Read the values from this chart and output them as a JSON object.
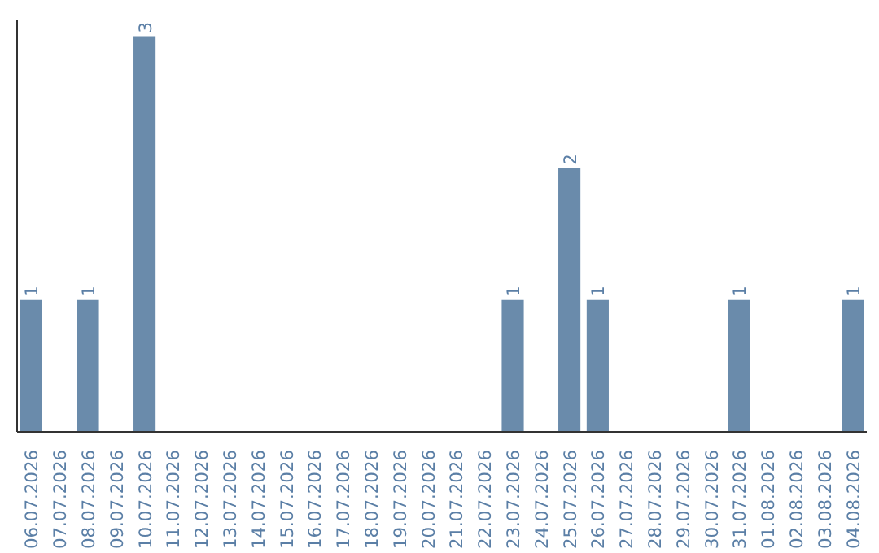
{
  "chart_data": {
    "type": "bar",
    "categories": [
      "06.07.2026",
      "07.07.2026",
      "08.07.2026",
      "09.07.2026",
      "10.07.2026",
      "11.07.2026",
      "12.07.2026",
      "13.07.2026",
      "14.07.2026",
      "15.07.2026",
      "16.07.2026",
      "17.07.2026",
      "18.07.2026",
      "19.07.2026",
      "20.07.2026",
      "21.07.2026",
      "22.07.2026",
      "23.07.2026",
      "24.07.2026",
      "25.07.2026",
      "26.07.2026",
      "27.07.2026",
      "28.07.2026",
      "29.07.2026",
      "30.07.2026",
      "31.07.2026",
      "01.08.2026",
      "02.08.2026",
      "03.08.2026",
      "04.08.2026"
    ],
    "values": [
      1,
      0,
      1,
      0,
      3,
      0,
      0,
      0,
      0,
      0,
      0,
      0,
      0,
      0,
      0,
      0,
      0,
      1,
      0,
      2,
      1,
      0,
      0,
      0,
      0,
      1,
      0,
      0,
      0,
      1
    ],
    "value_labels": [
      "1",
      null,
      "1",
      null,
      "3",
      null,
      null,
      null,
      null,
      null,
      null,
      null,
      null,
      null,
      null,
      null,
      null,
      "1",
      null,
      "2",
      "1",
      null,
      null,
      null,
      null,
      "1",
      null,
      null,
      null,
      "1"
    ],
    "color": "#6a8bab",
    "ylim": [
      0,
      3.12
    ],
    "grid": false,
    "tick_labels": "x"
  }
}
